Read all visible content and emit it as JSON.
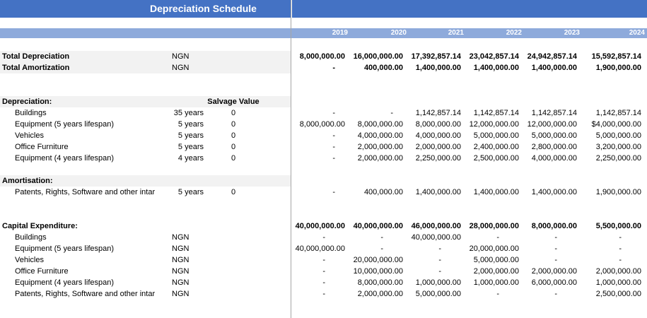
{
  "title": "Depreciation Schedule",
  "years": [
    "2019",
    "2020",
    "2021",
    "2022",
    "2023",
    "2024"
  ],
  "totals": [
    {
      "label": "Total Depreciation",
      "unit": "NGN",
      "values": [
        "8,000,000.00",
        "16,000,000.00",
        "17,392,857.14",
        "23,042,857.14",
        "24,942,857.14",
        "15,592,857.14"
      ]
    },
    {
      "label": "Total Amortization",
      "unit": "NGN",
      "values": [
        "-",
        "400,000.00",
        "1,400,000.00",
        "1,400,000.00",
        "1,400,000.00",
        "1,900,000.00"
      ]
    }
  ],
  "depreciation": {
    "header": "Depreciation:",
    "salvage_header": "Salvage Value",
    "rows": [
      {
        "label": "Buildings",
        "life": "35 years",
        "salvage": "0",
        "values": [
          "-",
          "-",
          "1,142,857.14",
          "1,142,857.14",
          "1,142,857.14",
          "1,142,857.14"
        ]
      },
      {
        "label": "Equipment (5 years lifespan)",
        "life": "5 years",
        "salvage": "0",
        "values": [
          "8,000,000.00",
          "8,000,000.00",
          "8,000,000.00",
          "12,000,000.00",
          "12,000,000.00",
          "$4,000,000.00"
        ]
      },
      {
        "label": "Vehicles",
        "life": "5 years",
        "salvage": "0",
        "values": [
          "-",
          "4,000,000.00",
          "4,000,000.00",
          "5,000,000.00",
          "5,000,000.00",
          "5,000,000.00"
        ]
      },
      {
        "label": "Office Furniture",
        "life": "5 years",
        "salvage": "0",
        "values": [
          "-",
          "2,000,000.00",
          "2,000,000.00",
          "2,400,000.00",
          "2,800,000.00",
          "3,200,000.00"
        ]
      },
      {
        "label": "Equipment (4 years lifespan)",
        "life": "4 years",
        "salvage": "0",
        "values": [
          "-",
          "2,000,000.00",
          "2,250,000.00",
          "2,500,000.00",
          "4,000,000.00",
          "2,250,000.00"
        ]
      }
    ]
  },
  "amortisation": {
    "header": "Amortisation:",
    "rows": [
      {
        "label": "Patents, Rights, Software and other intar",
        "life": "5 years",
        "salvage": "0",
        "values": [
          "-",
          "400,000.00",
          "1,400,000.00",
          "1,400,000.00",
          "1,400,000.00",
          "1,900,000.00"
        ]
      }
    ]
  },
  "capex": {
    "header": "Capital Expenditure:",
    "header_values": [
      "40,000,000.00",
      "40,000,000.00",
      "46,000,000.00",
      "28,000,000.00",
      "8,000,000.00",
      "5,500,000.00"
    ],
    "rows": [
      {
        "label": "Buildings",
        "unit": "NGN",
        "values": [
          "-",
          "-",
          "40,000,000.00",
          "-",
          "-",
          "-"
        ]
      },
      {
        "label": "Equipment (5 years lifespan)",
        "unit": "NGN",
        "values": [
          "40,000,000.00",
          "-",
          "-",
          "20,000,000.00",
          "-",
          "-"
        ]
      },
      {
        "label": "Vehicles",
        "unit": "NGN",
        "values": [
          "-",
          "20,000,000.00",
          "-",
          "5,000,000.00",
          "-",
          "-"
        ]
      },
      {
        "label": "Office Furniture",
        "unit": "NGN",
        "values": [
          "-",
          "10,000,000.00",
          "-",
          "2,000,000.00",
          "2,000,000.00",
          "2,000,000.00"
        ]
      },
      {
        "label": "Equipment (4 years lifespan)",
        "unit": "NGN",
        "values": [
          "-",
          "8,000,000.00",
          "1,000,000.00",
          "1,000,000.00",
          "6,000,000.00",
          "1,000,000.00"
        ]
      },
      {
        "label": "Patents, Rights, Software and other intar",
        "unit": "NGN",
        "values": [
          "-",
          "2,000,000.00",
          "5,000,000.00",
          "-",
          "-",
          "2,500,000.00"
        ]
      }
    ]
  }
}
